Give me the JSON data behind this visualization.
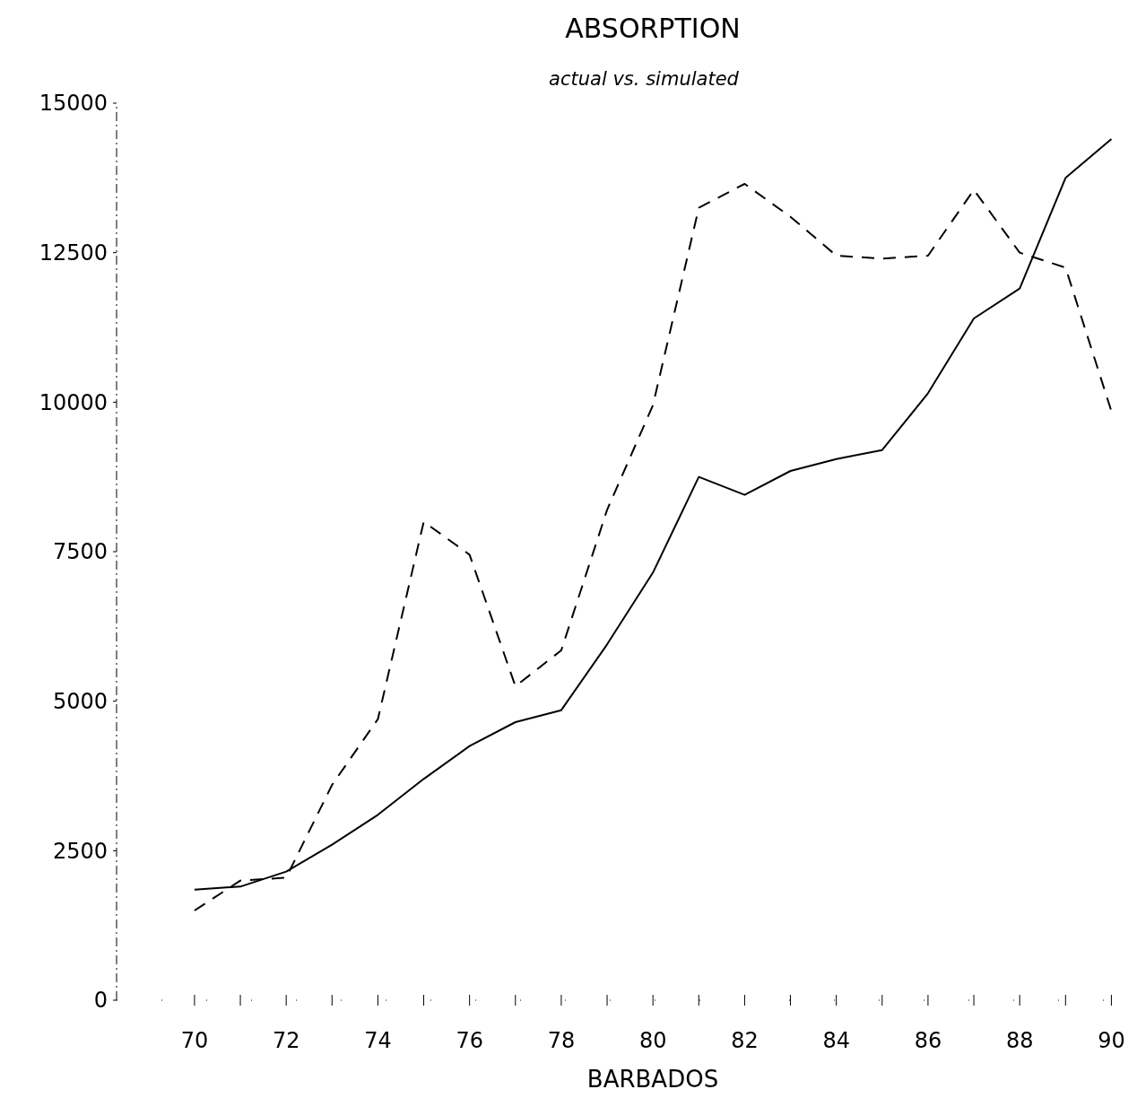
{
  "chart_data": {
    "type": "line",
    "title": "ABSORPTION",
    "subtitle": "actual vs. simulated",
    "xlabel": "BARBADOS",
    "x": [
      70,
      71,
      72,
      73,
      74,
      75,
      76,
      77,
      78,
      79,
      80,
      81,
      82,
      83,
      84,
      85,
      86,
      87,
      88,
      89,
      90
    ],
    "series": [
      {
        "color": "#000000",
        "line_style": "solid",
        "values": [
          1850,
          1900,
          2150,
          2600,
          3100,
          3700,
          4250,
          4650,
          4850,
          5950,
          7150,
          8750,
          8450,
          8850,
          9050,
          9200,
          10150,
          11400,
          11900,
          13750,
          14400
        ]
      },
      {
        "color": "#000000",
        "line_style": "dashed",
        "values": [
          1500,
          2000,
          2050,
          3600,
          4700,
          8000,
          7450,
          5250,
          5850,
          8200,
          9950,
          13250,
          13650,
          13100,
          12450,
          12400,
          12450,
          13550,
          12500,
          12250,
          9850
        ]
      }
    ],
    "xlim": [
      68.3,
      90.5
    ],
    "ylim": [
      0,
      15000
    ],
    "xticks": [
      70,
      {
        "value": 71,
        "label": null
      },
      72,
      {
        "value": 73,
        "label": null
      },
      74,
      {
        "value": 75,
        "label": null
      },
      76,
      {
        "value": 77,
        "label": null
      },
      78,
      {
        "value": 79,
        "label": null
      },
      80,
      {
        "value": 81,
        "label": null
      },
      82,
      {
        "value": 83,
        "label": null
      },
      84,
      {
        "value": 85,
        "label": null
      },
      86,
      {
        "value": 87,
        "label": null
      },
      88,
      {
        "value": 89,
        "label": null
      },
      90
    ],
    "yticks": [
      0,
      2500,
      5000,
      7500,
      10000,
      12500,
      15000
    ],
    "grid": false,
    "marker": "none"
  }
}
